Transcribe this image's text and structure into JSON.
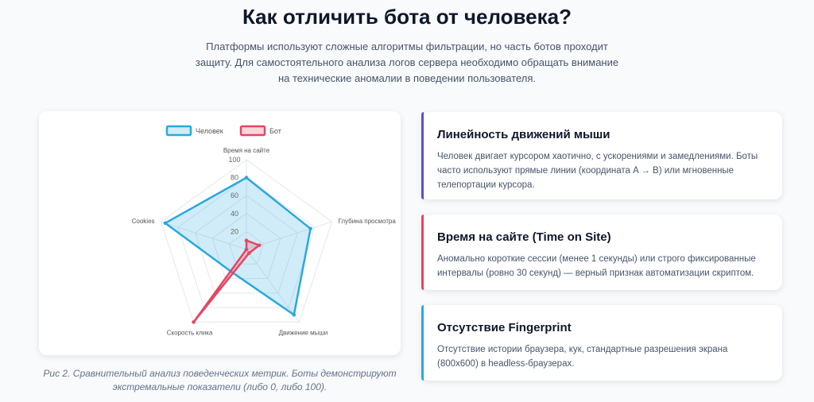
{
  "header": {
    "title": "Как отличить бота от человека?",
    "subtitle": "Платформы используют сложные алгоритмы фильтрации, но часть ботов проходит защиту. Для самостоятельного анализа логов сервера необходимо обращать внимание на технические аномалии в поведении пользователя."
  },
  "chart_data": {
    "type": "radar",
    "axes": [
      "Время на сайте",
      "Глубина просмотра",
      "Движение мыши",
      "Скорость клика",
      "Cookies"
    ],
    "ticks": [
      "20",
      "40",
      "60",
      "80",
      "100"
    ],
    "range": [
      0,
      100
    ],
    "legend_position": "top",
    "series": [
      {
        "name": "Человек",
        "values": [
          80,
          75,
          90,
          30,
          95
        ],
        "color": "#29a8e0",
        "fill": "rgba(41,168,224,0.22)"
      },
      {
        "name": "Бот",
        "values": [
          10,
          15,
          5,
          100,
          0
        ],
        "color": "#e64561",
        "fill": "rgba(230,69,97,0.22)"
      }
    ]
  },
  "caption": "Рис 2. Сравнительный анализ поведенческих метрик. Боты демонстрируют экстремальные показатели (либо 0, либо 100).",
  "cards": [
    {
      "title": "Линейность движений мыши",
      "text": "Человек двигает курсором хаотично, с ускорениями и замедлениями. Боты часто используют прямые линии (координата A → B) или мгновенные телепортации курсора.",
      "accent": "#5b4fcf"
    },
    {
      "title": "Время на сайте (Time on Site)",
      "text": "Аномально короткие сессии (менее 1 секунды) или строго фиксированные интервалы (ровно 30 секунд) — верный признак автоматизации скриптом.",
      "accent": "#e64561"
    },
    {
      "title": "Отсутствие Fingerprint",
      "text": "Отсутствие истории браузера, кук, стандартные разрешения экрана (800x600) в headless-браузерах.",
      "accent": "#29a8e0"
    }
  ]
}
